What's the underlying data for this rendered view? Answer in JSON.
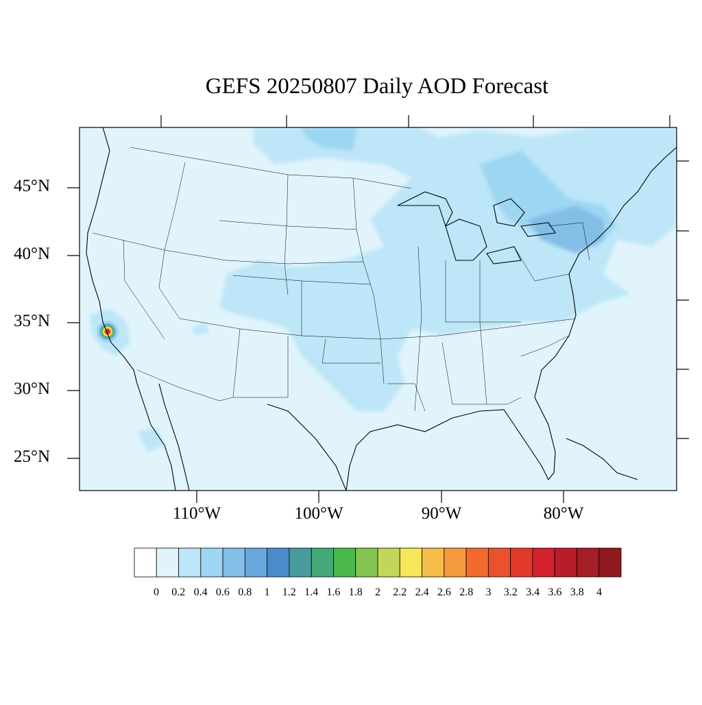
{
  "title": "GEFS 20250807 Daily AOD Forecast",
  "map": {
    "projection": "lambert-conformal",
    "region": "CONUS",
    "lat_labels": [
      "45°N",
      "40°N",
      "35°N",
      "30°N",
      "25°N"
    ],
    "lon_labels": [
      "110°W",
      "100°W",
      "90°W",
      "80°W"
    ],
    "background_aod_color": "#e1f4fc",
    "hotspot": {
      "location": "Southern California",
      "peak_aod": 4
    }
  },
  "colorbar": {
    "labels": [
      "0",
      "0.2",
      "0.4",
      "0.6",
      "0.8",
      "1",
      "1.2",
      "1.4",
      "1.6",
      "1.8",
      "2",
      "2.2",
      "2.4",
      "2.6",
      "2.8",
      "3",
      "3.2",
      "3.4",
      "3.6",
      "3.8",
      "4"
    ],
    "colors": [
      "#ffffff",
      "#e1f4fc",
      "#bde6f8",
      "#9dd6f2",
      "#83bee6",
      "#68a8dc",
      "#4a8ccb",
      "#4a9b9c",
      "#45a878",
      "#4bb84c",
      "#86c452",
      "#c2d75a",
      "#f6e75a",
      "#f6bd4b",
      "#f59a3c",
      "#f36a2f",
      "#e9522c",
      "#e13a2b",
      "#d1212c",
      "#b91c2a",
      "#a51d25",
      "#8f1a1d"
    ]
  }
}
